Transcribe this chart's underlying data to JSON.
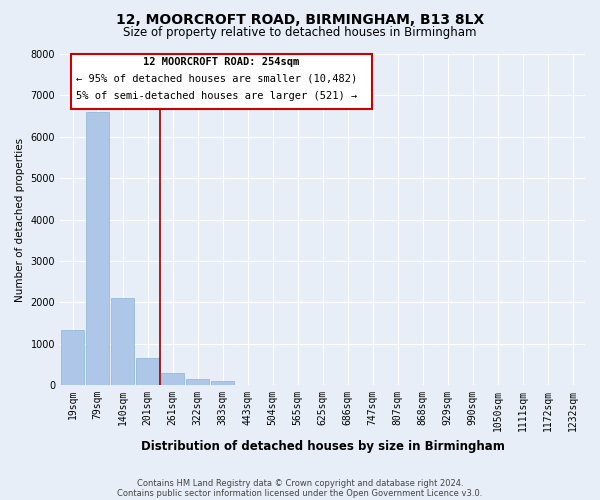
{
  "title": "12, MOORCROFT ROAD, BIRMINGHAM, B13 8LX",
  "subtitle": "Size of property relative to detached houses in Birmingham",
  "bar_labels": [
    "19sqm",
    "79sqm",
    "140sqm",
    "201sqm",
    "261sqm",
    "322sqm",
    "383sqm",
    "443sqm",
    "504sqm",
    "565sqm",
    "625sqm",
    "686sqm",
    "747sqm",
    "807sqm",
    "868sqm",
    "929sqm",
    "990sqm",
    "1050sqm",
    "1111sqm",
    "1172sqm",
    "1232sqm"
  ],
  "bar_values": [
    1330,
    6600,
    2100,
    660,
    300,
    160,
    90,
    0,
    0,
    0,
    0,
    0,
    0,
    0,
    0,
    0,
    0,
    0,
    0,
    0,
    0
  ],
  "bar_color": "#aec6e8",
  "bar_edge_color": "#8ab4d4",
  "background_color": "#e8eef8",
  "grid_color": "#ffffff",
  "vline_x_index": 4,
  "vline_color": "#990000",
  "ylabel": "Number of detached properties",
  "xlabel": "Distribution of detached houses by size in Birmingham",
  "ylim": [
    0,
    8000
  ],
  "yticks": [
    0,
    1000,
    2000,
    3000,
    4000,
    5000,
    6000,
    7000,
    8000
  ],
  "box_text_line1": "12 MOORCROFT ROAD: 254sqm",
  "box_text_line2": "← 95% of detached houses are smaller (10,482)",
  "box_text_line3": "5% of semi-detached houses are larger (521) →",
  "box_color": "#ffffff",
  "box_edge_color": "#cc0000",
  "footer_line1": "Contains HM Land Registry data © Crown copyright and database right 2024.",
  "footer_line2": "Contains public sector information licensed under the Open Government Licence v3.0."
}
